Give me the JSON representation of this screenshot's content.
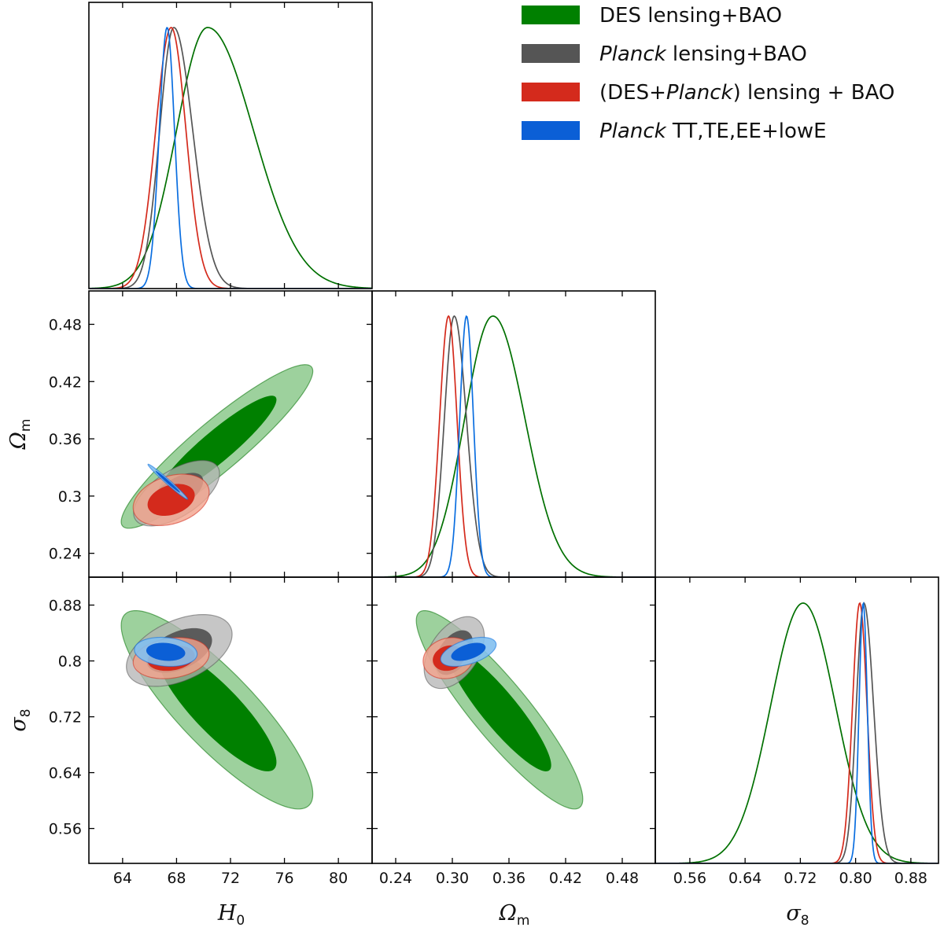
{
  "chart_data": {
    "type": "corner-triangle",
    "parameters": [
      {
        "key": "H0",
        "symbol": "H",
        "sub": "0",
        "range": [
          61.5,
          82.5
        ],
        "ticks": [
          64,
          68,
          72,
          76,
          80
        ],
        "tick_labels": [
          "64",
          "68",
          "72",
          "76",
          "80"
        ]
      },
      {
        "key": "Om",
        "symbol": "Ω",
        "sub": "m",
        "range": [
          0.215,
          0.515
        ],
        "ticks": [
          0.24,
          0.3,
          0.36,
          0.42,
          0.48
        ],
        "tick_labels_x": [
          "0.24",
          "0.30",
          "0.36",
          "0.42",
          "0.48"
        ],
        "tick_labels_y": [
          "0.24",
          "0.3",
          "0.36",
          "0.42",
          "0.48"
        ]
      },
      {
        "key": "s8",
        "symbol": "σ",
        "sub": "8",
        "range": [
          0.51,
          0.92
        ],
        "ticks": [
          0.56,
          0.64,
          0.72,
          0.8,
          0.88
        ],
        "tick_labels_x": [
          "0.56",
          "0.64",
          "0.72",
          "0.80",
          "0.88"
        ],
        "tick_labels_y": [
          "0.56",
          "0.64",
          "0.72",
          "0.8",
          "0.88"
        ]
      }
    ],
    "legend_placement": "top-right",
    "series": [
      {
        "name_parts": [
          {
            "t": "DES lensing+BAO",
            "i": false
          }
        ],
        "color_dark": "#008000",
        "color_light": "#8cc98c",
        "line": "#007000",
        "fill_opacity_outer": 0.85,
        "fill_opacity_inner": 1.0,
        "marginals": {
          "H0": {
            "peak": 70.3,
            "sigma_left": 2.3,
            "sigma_right": 3.4
          },
          "Om": {
            "peak": 0.343,
            "sigma_left": 0.03,
            "sigma_right": 0.034
          },
          "s8": {
            "peak": 0.724,
            "sigma_left": 0.047,
            "sigma_right": 0.047
          }
        },
        "contours": {
          "H0_Om": {
            "center": [
              71.0,
              0.352
            ],
            "sigma": [
              2.9,
              0.035
            ],
            "rho": 0.92
          },
          "H0_s8": {
            "center": [
              71.0,
              0.73
            ],
            "sigma": [
              2.9,
              0.058
            ],
            "rho": -0.85
          },
          "Om_s8": {
            "center": [
              0.35,
              0.73
            ],
            "sigma": [
              0.036,
              0.058
            ],
            "rho": -0.9
          }
        }
      },
      {
        "name_parts": [
          {
            "t": "Planck",
            "i": true
          },
          {
            "t": " lensing+BAO",
            "i": false
          }
        ],
        "color_dark": "#555555",
        "color_light": "#b3b3b3",
        "line": "#555555",
        "fill_opacity_outer": 0.75,
        "fill_opacity_inner": 0.95,
        "marginals": {
          "H0": {
            "peak": 67.8,
            "sigma_left": 1.05,
            "sigma_right": 1.4
          },
          "Om": {
            "peak": 0.302,
            "sigma_left": 0.0105,
            "sigma_right": 0.013
          },
          "s8": {
            "peak": 0.812,
            "sigma_left": 0.011,
            "sigma_right": 0.014
          }
        },
        "contours": {
          "H0_Om": {
            "center": [
              68.0,
              0.303
            ],
            "sigma": [
              1.3,
              0.014
            ],
            "rho": 0.6
          },
          "H0_s8": {
            "center": [
              68.2,
              0.815
            ],
            "sigma": [
              1.6,
              0.021
            ],
            "rho": 0.45
          },
          "Om_s8": {
            "center": [
              0.302,
              0.812
            ],
            "sigma": [
              0.013,
              0.021
            ],
            "rho": 0.45
          }
        }
      },
      {
        "name_parts": [
          {
            "t": "(DES+",
            "i": false
          },
          {
            "t": "Planck",
            "i": true
          },
          {
            "t": ") lensing + BAO",
            "i": false
          }
        ],
        "color_dark": "#d42a1c",
        "color_light": "#f3a38c",
        "line": "#d42a1c",
        "fill_opacity_outer": 0.8,
        "fill_opacity_inner": 1.0,
        "marginals": {
          "H0": {
            "peak": 67.6,
            "sigma_left": 1.15,
            "sigma_right": 1.1
          },
          "Om": {
            "peak": 0.296,
            "sigma_left": 0.0095,
            "sigma_right": 0.009
          },
          "s8": {
            "peak": 0.806,
            "sigma_left": 0.0105,
            "sigma_right": 0.0105
          }
        },
        "contours": {
          "H0_Om": {
            "center": [
              67.6,
              0.296
            ],
            "sigma": [
              1.15,
              0.011
            ],
            "rho": 0.3
          },
          "H0_s8": {
            "center": [
              67.6,
              0.804
            ],
            "sigma": [
              1.15,
              0.012
            ],
            "rho": 0.2
          },
          "Om_s8": {
            "center": [
              0.296,
              0.804
            ],
            "sigma": [
              0.011,
              0.012
            ],
            "rho": 0.15
          }
        }
      },
      {
        "name_parts": [
          {
            "t": "Planck",
            "i": true
          },
          {
            "t": " TT,TE,EE+lowE",
            "i": false
          }
        ],
        "color_dark": "#0b5fd6",
        "color_light": "#83c0ef",
        "line": "#0a6ee0",
        "fill_opacity_outer": 0.9,
        "fill_opacity_inner": 1.0,
        "marginals": {
          "H0": {
            "peak": 67.3,
            "sigma_left": 0.58,
            "sigma_right": 0.55
          },
          "Om": {
            "peak": 0.315,
            "sigma_left": 0.0072,
            "sigma_right": 0.0074
          },
          "s8": {
            "peak": 0.811,
            "sigma_left": 0.006,
            "sigma_right": 0.006
          }
        },
        "contours": {
          "H0_Om": {
            "center": [
              67.35,
              0.315
            ],
            "sigma": [
              0.6,
              0.0075
            ],
            "rho": -0.985
          },
          "H0_s8": {
            "center": [
              67.2,
              0.813
            ],
            "sigma": [
              0.95,
              0.0085
            ],
            "rho": -0.15
          },
          "Om_s8": {
            "center": [
              0.317,
              0.813
            ],
            "sigma": [
              0.012,
              0.0085
            ],
            "rho": 0.5
          }
        }
      }
    ]
  }
}
